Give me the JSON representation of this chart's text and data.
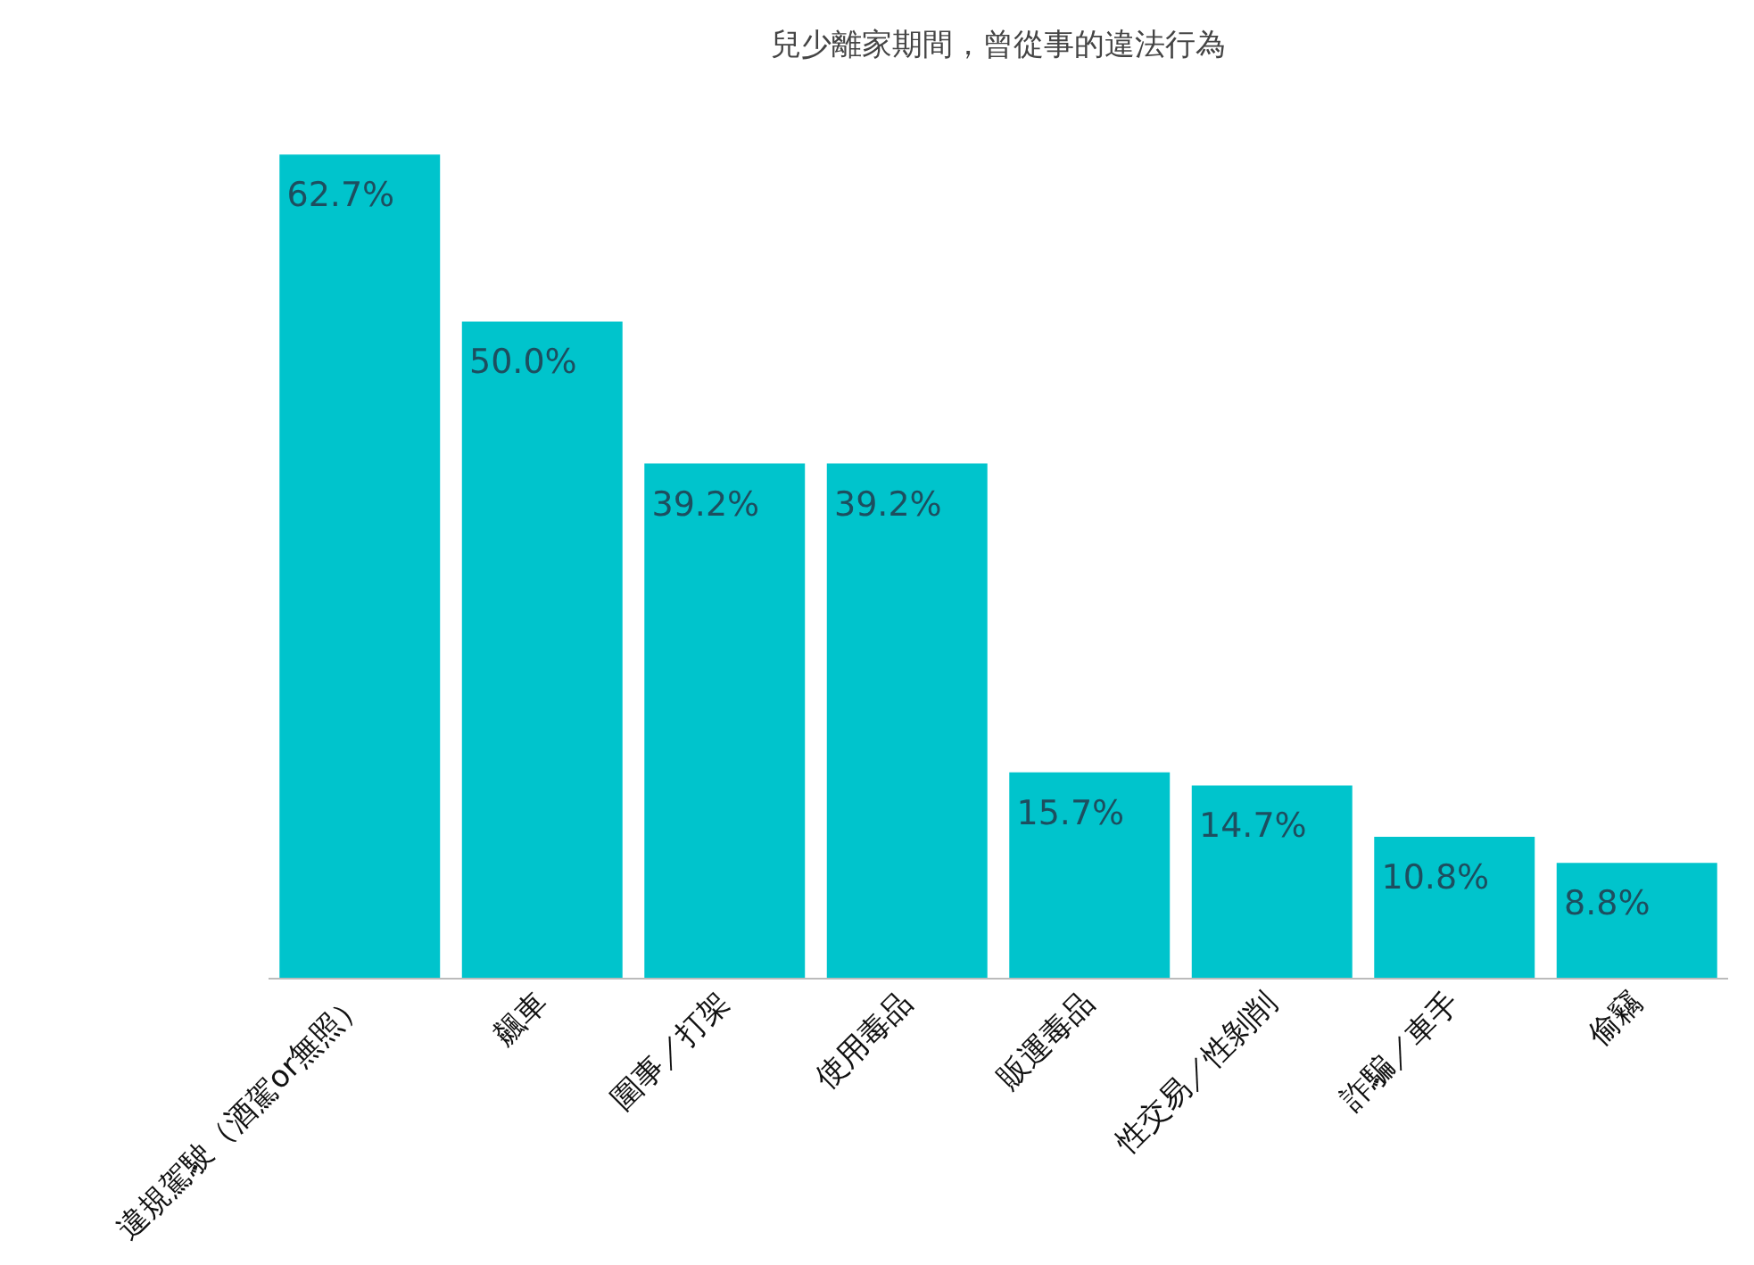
{
  "chart_data": {
    "type": "bar",
    "title": "兒少離家期間，曾從事的違法行為",
    "categories": [
      "違規駕駛（酒駕or無照）",
      "飆車",
      "圍事／打架",
      "使用毒品",
      "販運毒品",
      "性交易／性剝削",
      "詐騙／車手",
      "偷竊"
    ],
    "values": [
      62.7,
      50.0,
      39.2,
      39.2,
      15.7,
      14.7,
      10.8,
      8.8
    ],
    "value_labels": [
      "62.7%",
      "50.0%",
      "39.2%",
      "39.2%",
      "15.7%",
      "14.7%",
      "10.8%",
      "8.8%"
    ],
    "color": "#00c4cc",
    "tick_labels": "x"
  }
}
